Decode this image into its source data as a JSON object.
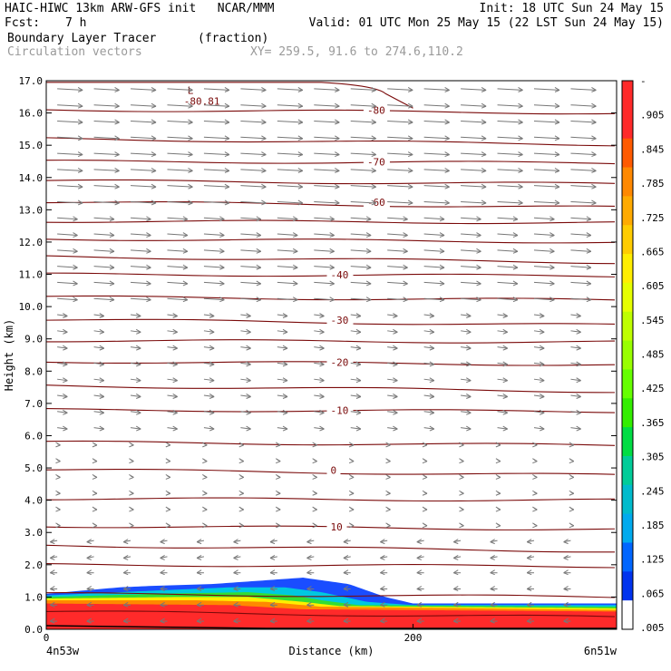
{
  "header": {
    "line1_left": "HAIC-HIWC 13km ARW-GFS init   NCAR/MMM",
    "line1_right": "Init: 18 UTC Sun 24 May 15",
    "fcst_label": "Fcst:",
    "fcst_value": "7 h",
    "valid": "Valid: 01 UTC Mon 25 May 15 (22 LST Sun 24 May 15)",
    "field": "Boundary Layer Tracer",
    "units": "(fraction)",
    "vectors": "Circulation vectors",
    "xy": "XY= 259.5, 91.6 to 274.6,110.2"
  },
  "chart_data": {
    "type": "area",
    "title": "Boundary Layer Tracer",
    "ylabel": "Height (km)",
    "xlabel": "Distance (km)",
    "ylim": [
      0.0,
      17.0
    ],
    "xlim": [
      0,
      311
    ],
    "y_ticks": [
      "0.0",
      "1.0",
      "2.0",
      "3.0",
      "4.0",
      "5.0",
      "6.0",
      "7.0",
      "8.0",
      "9.0",
      "10.0",
      "11.0",
      "12.0",
      "13.0",
      "14.0",
      "15.0",
      "16.0",
      "17.0"
    ],
    "x_ticks": [
      {
        "value": 0,
        "label": "0"
      },
      {
        "value": 200,
        "label": "200"
      }
    ],
    "x_endpoints": {
      "left": "4n53w",
      "right": "6n51w"
    },
    "colorbar": {
      "labels": [
        "-",
        ".905",
        ".845",
        ".785",
        ".725",
        ".665",
        ".605",
        ".545",
        ".485",
        ".425",
        ".365",
        ".305",
        ".245",
        ".185",
        ".125",
        ".065",
        ".005"
      ],
      "colors": [
        "#ff2a2a",
        "#ff2a2a",
        "#ff5a00",
        "#ff8800",
        "#ffaa00",
        "#ffcc00",
        "#ffee00",
        "#e6ff00",
        "#bfff00",
        "#99ff00",
        "#66ff00",
        "#33ee00",
        "#00dd44",
        "#00cc99",
        "#00bbcc",
        "#00aaee",
        "#0066ff",
        "#0033ee",
        "#ffffff"
      ]
    },
    "temperature_contours_C": [
      {
        "level": 10,
        "label": "10",
        "height_km": 3.2
      },
      {
        "level": 0,
        "label": "0",
        "height_km": 4.95
      },
      {
        "level": -10,
        "label": "-10",
        "height_km": 6.8
      },
      {
        "level": -20,
        "label": "-20",
        "height_km": 8.3
      },
      {
        "level": -30,
        "label": "-30",
        "height_km": 9.6
      },
      {
        "level": -40,
        "label": "-40",
        "height_km": 11.0
      },
      {
        "level": -60,
        "label": "-60",
        "height_km": 13.25
      },
      {
        "level": -70,
        "label": "-70",
        "height_km": 14.5
      },
      {
        "level": -80,
        "label": "-80",
        "height_km": 16.1
      }
    ],
    "extremum": {
      "marker": "L",
      "value": "-80.81",
      "x_km": 78,
      "height_km": 16.7
    },
    "tracer_layers": [
      {
        "value": 0.05,
        "color": "#1a4dff",
        "top_km": [
          [
            0,
            1.1
          ],
          [
            40,
            1.3
          ],
          [
            60,
            1.35
          ],
          [
            90,
            1.4
          ],
          [
            140,
            1.6
          ],
          [
            165,
            1.4
          ],
          [
            185,
            1.0
          ],
          [
            200,
            0.8
          ],
          [
            280,
            0.8
          ],
          [
            311,
            0.8
          ]
        ]
      },
      {
        "value": 0.2,
        "color": "#00c8e0",
        "top_km": [
          [
            0,
            1.05
          ],
          [
            60,
            1.2
          ],
          [
            100,
            1.3
          ],
          [
            130,
            1.3
          ],
          [
            150,
            1.15
          ],
          [
            175,
            0.85
          ],
          [
            200,
            0.75
          ],
          [
            311,
            0.75
          ]
        ]
      },
      {
        "value": 0.4,
        "color": "#33dd33",
        "top_km": [
          [
            0,
            1.0
          ],
          [
            60,
            1.1
          ],
          [
            110,
            1.15
          ],
          [
            135,
            1.05
          ],
          [
            150,
            0.9
          ],
          [
            170,
            0.75
          ],
          [
            311,
            0.7
          ]
        ]
      },
      {
        "value": 0.6,
        "color": "#ffee00",
        "top_km": [
          [
            0,
            0.95
          ],
          [
            70,
            1.0
          ],
          [
            110,
            1.0
          ],
          [
            140,
            0.85
          ],
          [
            160,
            0.72
          ],
          [
            311,
            0.65
          ]
        ]
      },
      {
        "value": 0.8,
        "color": "#ff8800",
        "top_km": [
          [
            0,
            0.9
          ],
          [
            80,
            0.9
          ],
          [
            120,
            0.85
          ],
          [
            150,
            0.7
          ],
          [
            311,
            0.6
          ]
        ]
      },
      {
        "value": 0.95,
        "color": "#ff2a2a",
        "top_km": [
          [
            0,
            0.8
          ],
          [
            100,
            0.75
          ],
          [
            140,
            0.62
          ],
          [
            311,
            0.55
          ]
        ]
      }
    ]
  }
}
